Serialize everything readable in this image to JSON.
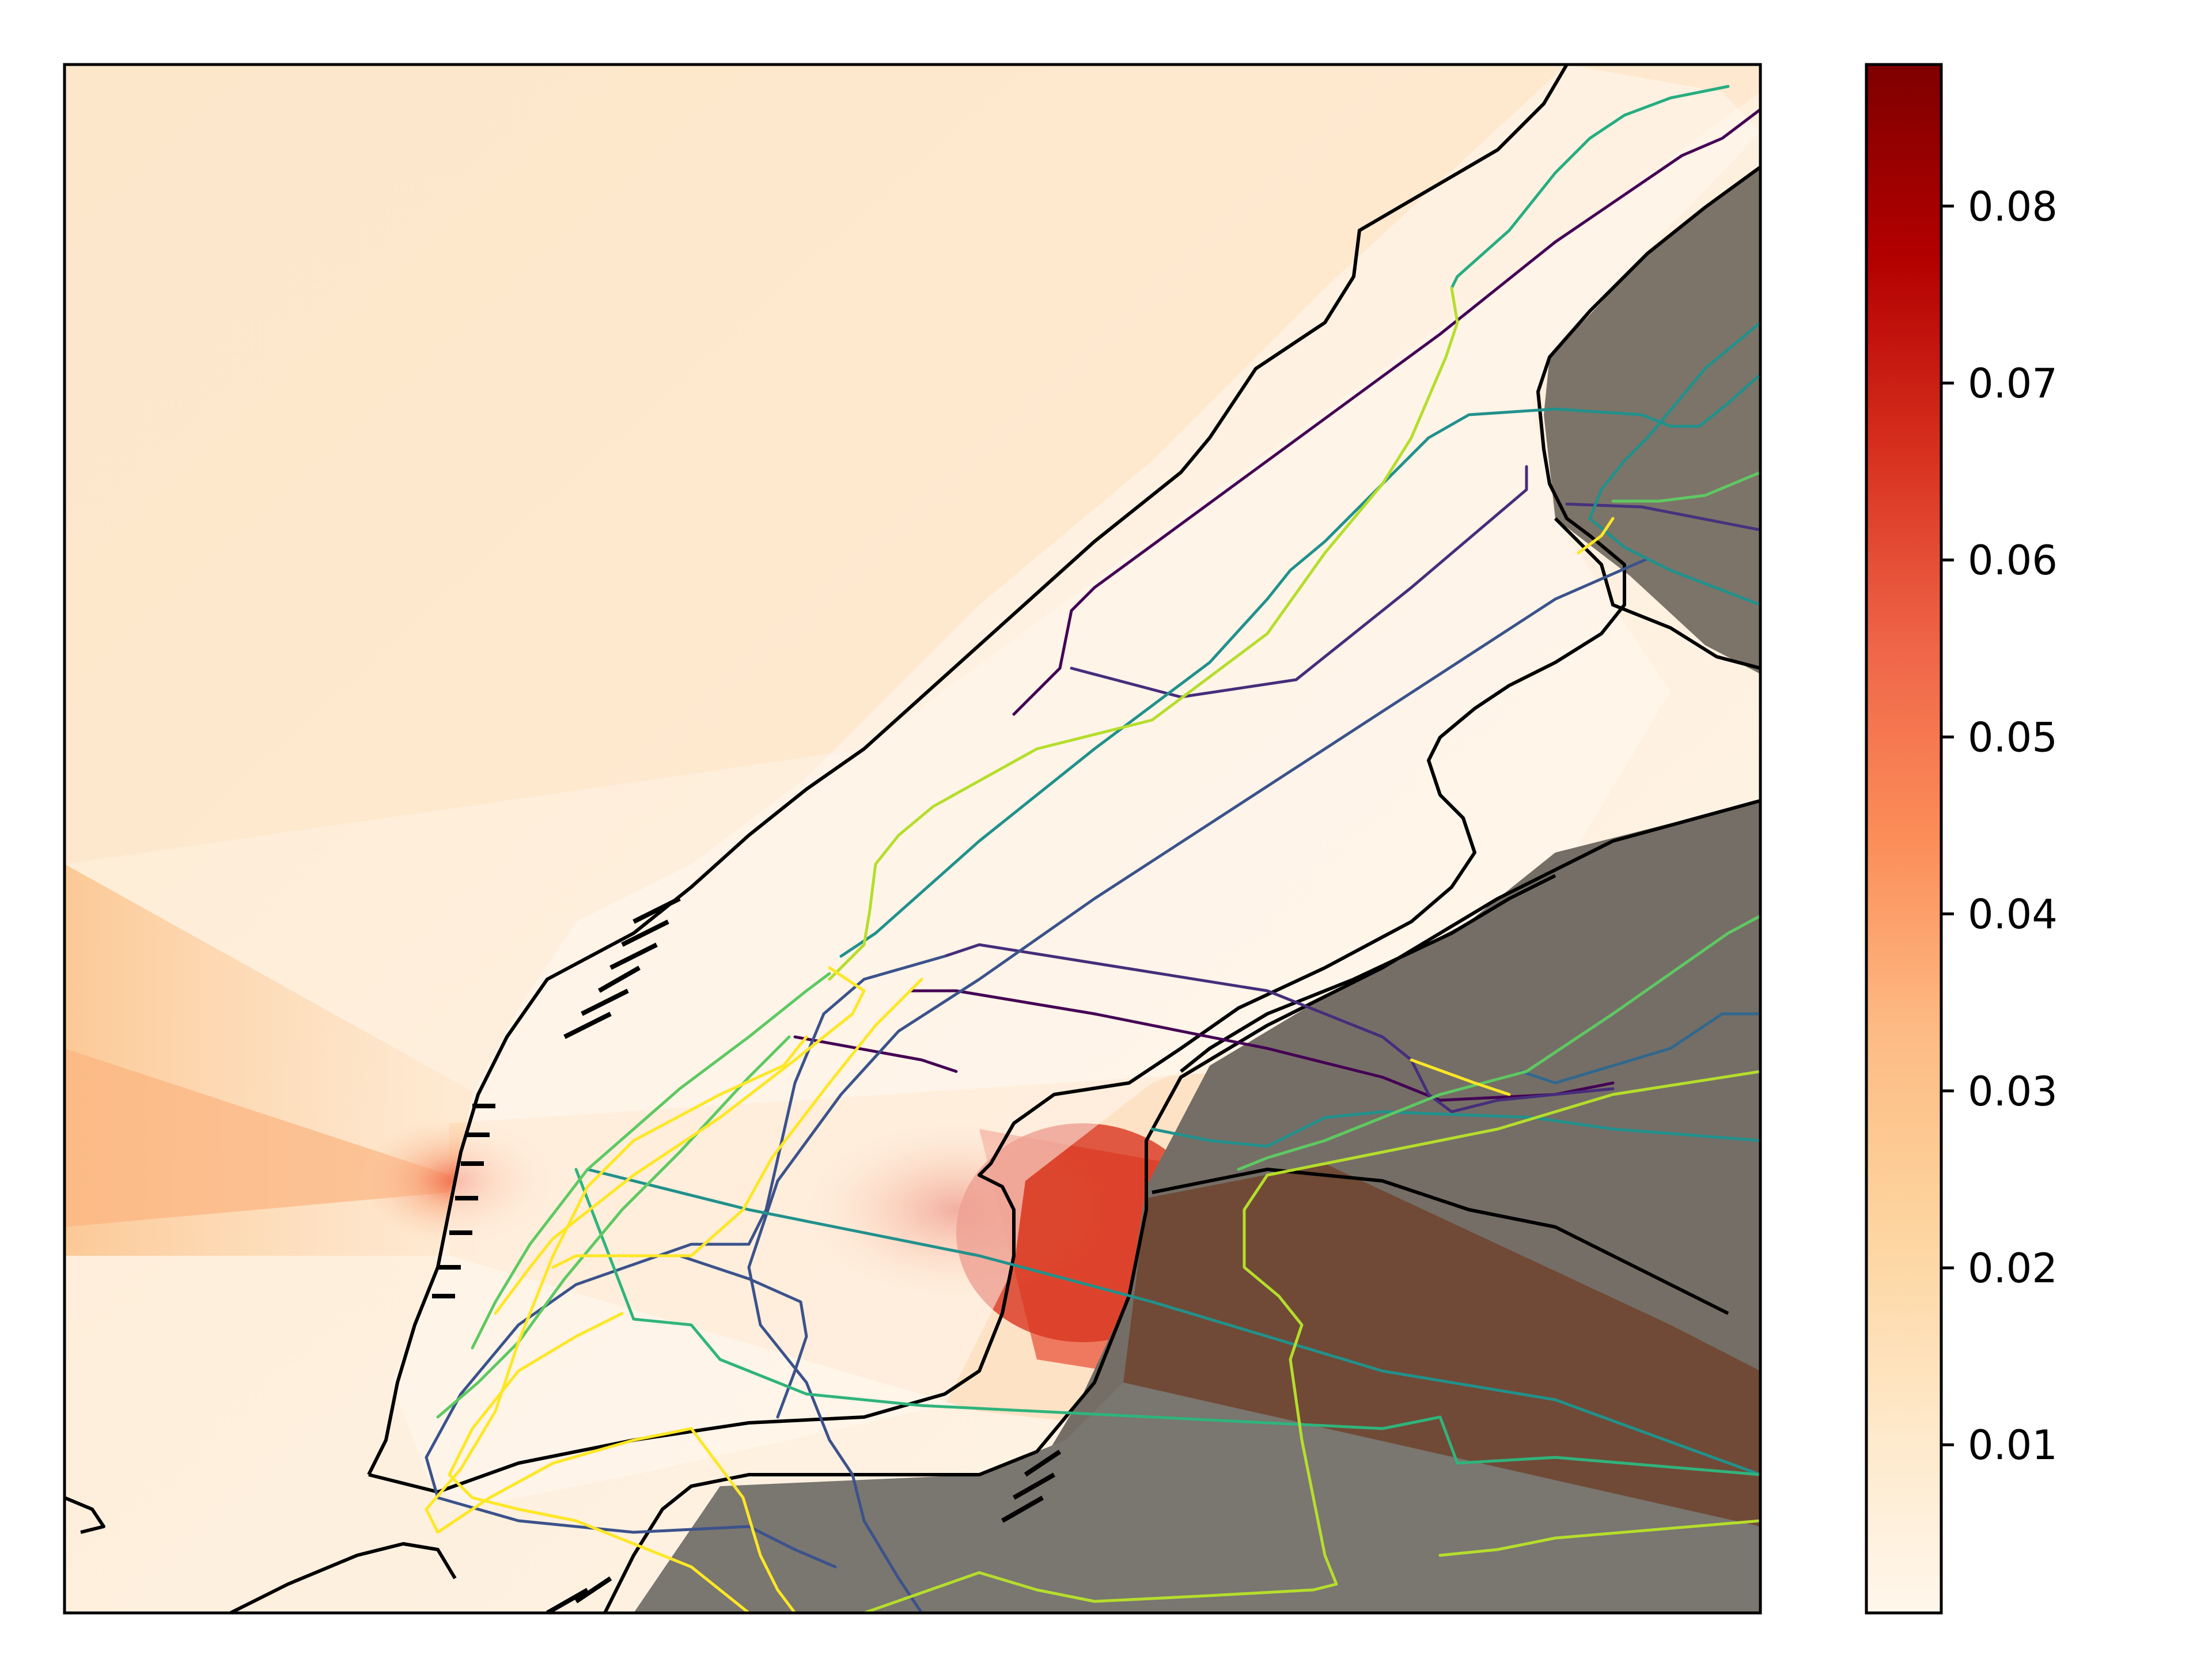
{
  "figure": {
    "type": "map_heatmap",
    "description_none": ""
  },
  "colorbar": {
    "colormap": "OrRd",
    "min": 0.0005,
    "max": 0.088,
    "ticks": [
      "0.01",
      "0.02",
      "0.03",
      "0.04",
      "0.05",
      "0.06",
      "0.07",
      "0.08"
    ],
    "tick_values": [
      0.01,
      0.02,
      0.03,
      0.04,
      0.05,
      0.06,
      0.07,
      0.08
    ],
    "colors": [
      "#fff7ec",
      "#fee8c8",
      "#fdd49e",
      "#fdbb84",
      "#fc8d59",
      "#ef6548",
      "#d7301f",
      "#b30000",
      "#7f0000"
    ]
  },
  "map": {
    "land_shade_color": "#6b6b6b",
    "coastline_color": "#000000",
    "subway_colors": [
      "#440154",
      "#3b528b",
      "#21918c",
      "#5ec962",
      "#fde725",
      "#b5de2b"
    ]
  }
}
